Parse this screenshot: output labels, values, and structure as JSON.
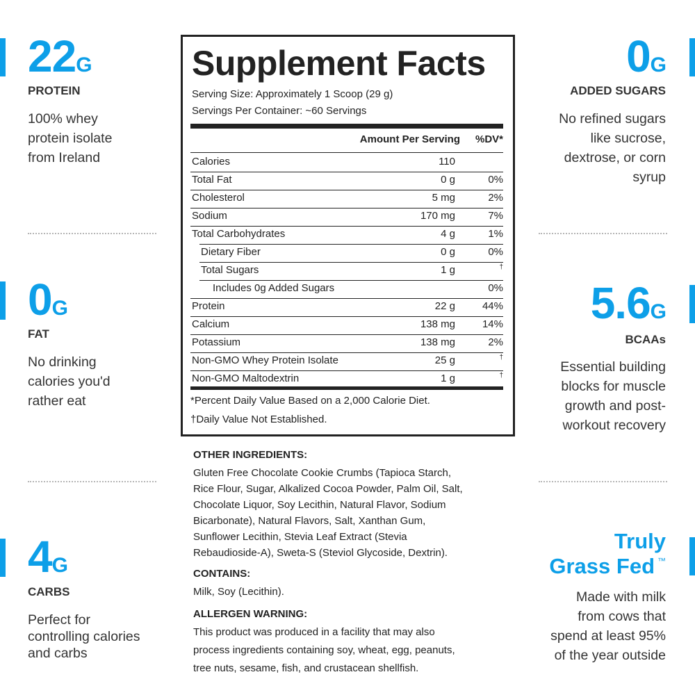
{
  "left_panels": [
    {
      "value": "22",
      "unit": "G",
      "label": "PROTEIN",
      "description": [
        "100% whey",
        "protein isolate",
        "from Ireland"
      ]
    },
    {
      "value": "0",
      "unit": "G",
      "label": "FAT",
      "description": [
        "No drinking",
        "calories you'd",
        "rather eat"
      ]
    },
    {
      "value": "4",
      "unit": "G",
      "label": "CARBS",
      "description": [
        "Perfect for",
        "controlling calories",
        "and carbs"
      ]
    }
  ],
  "right_panels": [
    {
      "value": "0",
      "unit": "G",
      "label": "ADDED SUGARS",
      "description": [
        "No refined sugars",
        "like sucrose,",
        "dextrose, or corn",
        "syrup"
      ]
    },
    {
      "value": "5.6",
      "unit": "G",
      "label": "BCAAs",
      "description": [
        "Essential building",
        "blocks for muscle",
        "growth and post-",
        "workout recovery"
      ]
    }
  ],
  "grass_fed": {
    "line1": "Truly",
    "line2": "Grass Fed",
    "mark": "™",
    "description": [
      "Made with milk",
      "from cows that",
      "spend at least 95%",
      "of the year outside"
    ]
  },
  "facts": {
    "title": "Supplement Facts",
    "serving_size": "Serving Size: Approximately 1 Scoop (29 g)",
    "servings_per_container": "Servings Per Container: ~60 Servings",
    "amount_header": "Amount Per Serving",
    "dv_header": "%DV*",
    "rows": [
      {
        "name": "Calories",
        "amount": "110",
        "dv": null
      },
      {
        "name": "Total Fat",
        "amount": "0 g",
        "dv": "0%"
      },
      {
        "name": "Cholesterol",
        "amount": "5 mg",
        "dv": "2%"
      },
      {
        "name": "Sodium",
        "amount": "170 mg",
        "dv": "7%"
      },
      {
        "name": "Total Carbohydrates",
        "amount": "4 g",
        "dv": "1%"
      },
      {
        "name": "Dietary Fiber",
        "amount": "0 g",
        "dv": "0%"
      },
      {
        "name": "Total Sugars",
        "amount": "1 g",
        "dv": "†"
      },
      {
        "name": "Includes 0g Added Sugars",
        "amount": null,
        "dv": "0%"
      },
      {
        "name": "Protein",
        "amount": "22 g",
        "dv": "44%"
      },
      {
        "name": "Calcium",
        "amount": "138 mg",
        "dv": "14%"
      },
      {
        "name": "Potassium",
        "amount": "138 mg",
        "dv": "2%"
      },
      {
        "name": "Non-GMO Whey Protein Isolate",
        "amount": "25 g",
        "dv": "†"
      },
      {
        "name": "Non-GMO Maltodextrin",
        "amount": "1 g",
        "dv": "†"
      }
    ],
    "footnote1": "*Percent Daily Value Based on a 2,000 Calorie Diet.",
    "footnote2": "†Daily Value Not Established."
  },
  "ingredients": {
    "other_heading": "OTHER INGREDIENTS:",
    "other_lines": [
      "Gluten Free Chocolate Cookie Crumbs (Tapioca Starch,",
      "Rice Flour, Sugar, Alkalized Cocoa Powder, Palm Oil, Salt,",
      "Chocolate Liquor, Soy Lecithin, Natural Flavor, Sodium",
      "Bicarbonate), Natural Flavors, Salt, Xanthan Gum,",
      "Sunflower Lecithin, Stevia Leaf Extract (Stevia",
      "Rebaudioside-A), Sweta-S (Steviol Glycoside, Dextrin)."
    ],
    "contains_heading": "CONTAINS:",
    "contains": "Milk, Soy (Lecithin).",
    "allergen_heading": "ALLERGEN WARNING:",
    "allergen_lines": [
      "This product was produced in a facility that may also",
      "process ingredients containing soy, wheat, egg, peanuts,",
      "tree nuts, sesame, fish, and crustacean shellfish."
    ]
  }
}
